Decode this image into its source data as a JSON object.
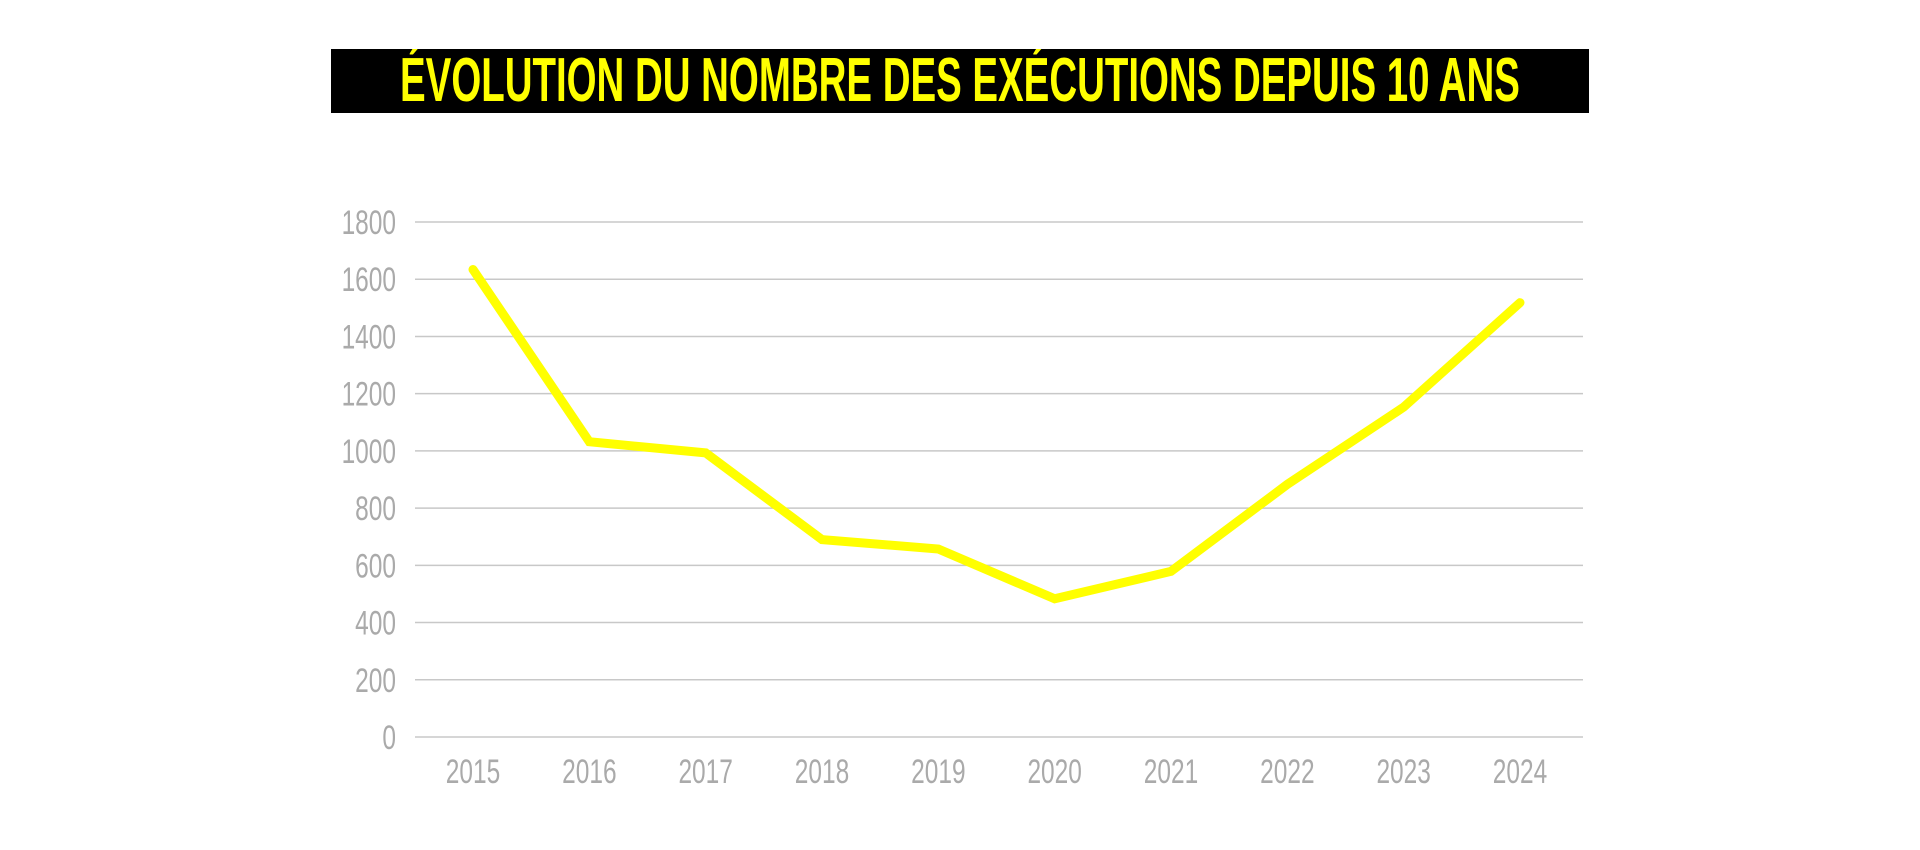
{
  "chart_data": {
    "type": "line",
    "title": "ÉVOLUTION DU NOMBRE DES EXÉCUTIONS DEPUIS 10 ANS",
    "categories": [
      "2015",
      "2016",
      "2017",
      "2018",
      "2019",
      "2020",
      "2021",
      "2022",
      "2023",
      "2024"
    ],
    "values": [
      1634,
      1032,
      993,
      690,
      657,
      483,
      579,
      883,
      1153,
      1518
    ],
    "ylim": [
      0,
      1800
    ],
    "yticks": [
      0,
      200,
      400,
      600,
      800,
      1000,
      1200,
      1400,
      1600,
      1800
    ],
    "grid": true,
    "legend": "none",
    "colors": {
      "line": "#ffff00",
      "title_bg": "#000000",
      "title_text": "#ffff00",
      "grid": "#c8c8c8",
      "ticks": "#aaaaaa"
    }
  }
}
